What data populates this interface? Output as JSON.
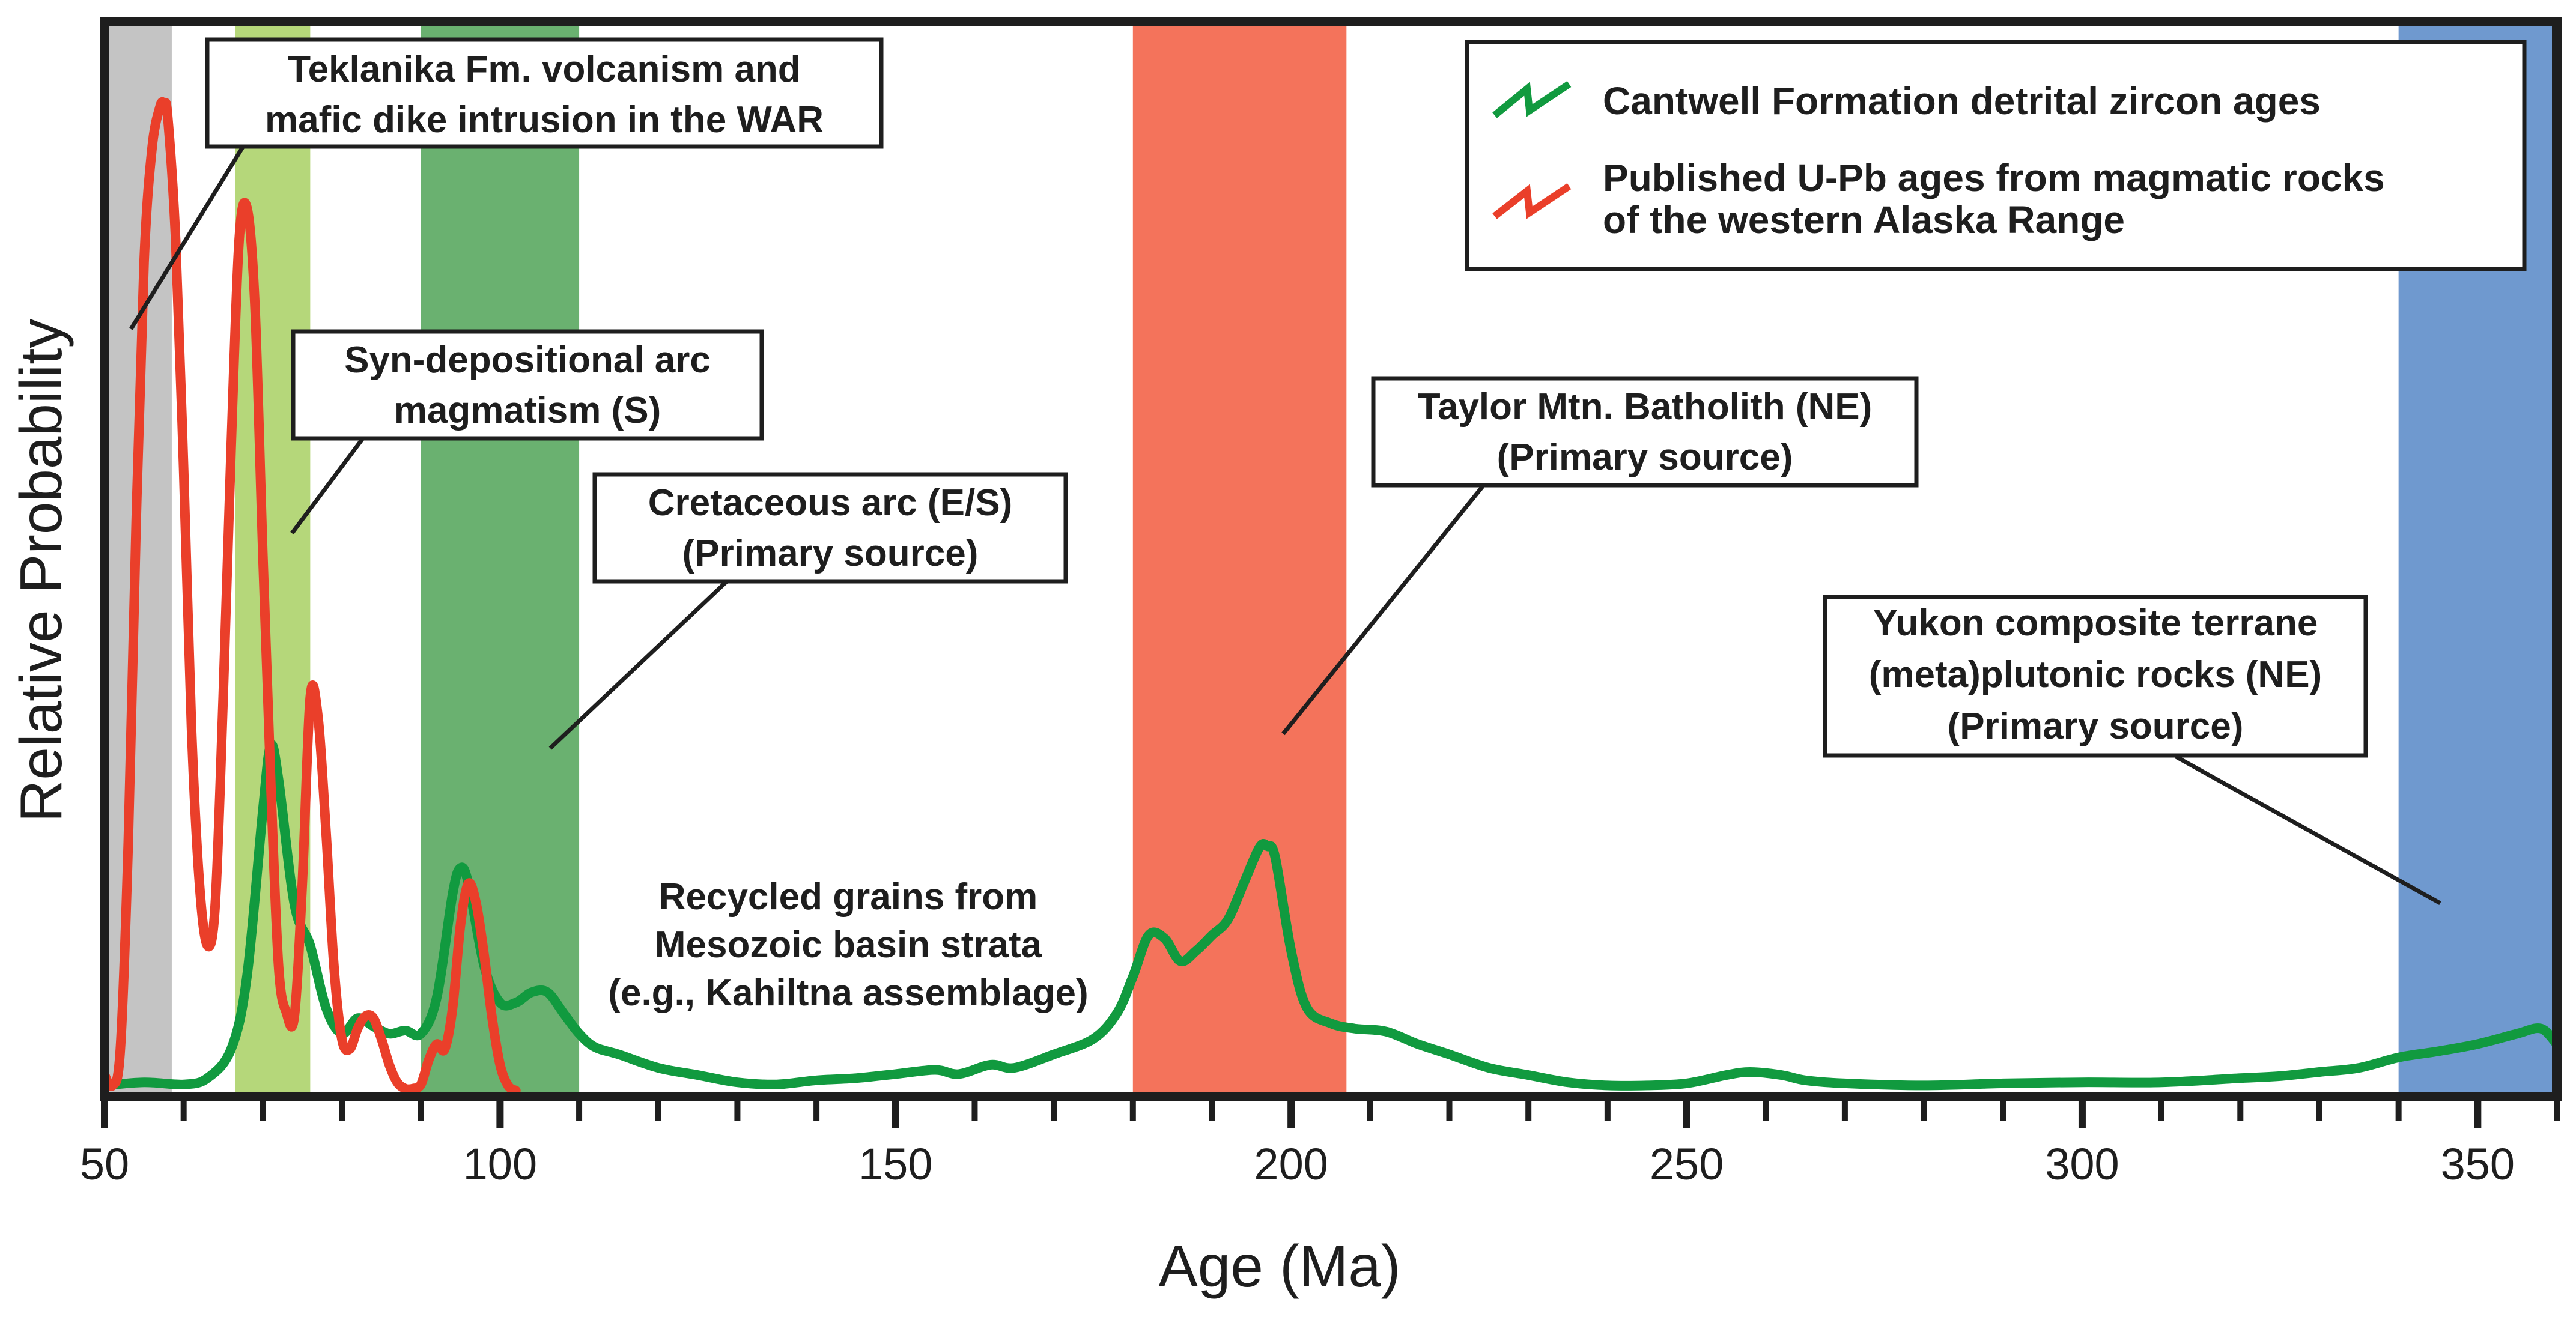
{
  "colors": {
    "green_curve": "#119a3f",
    "red_curve": "#ea3f2a",
    "band_gray": "#c4c4c4",
    "band_light_green": "#b5d77a",
    "band_dark_green": "#6ab170",
    "band_salmon": "#f4735b",
    "band_blue": "#6f99cf",
    "axis": "#1e1e1e"
  },
  "chart_data": {
    "type": "line",
    "title": "",
    "xlabel": "Age (Ma)",
    "ylabel": "Relative Probability",
    "xlim": [
      50,
      360
    ],
    "ylim": [
      0,
      1
    ],
    "xticks": [
      50,
      100,
      150,
      200,
      250,
      300,
      350
    ],
    "minor_tick_step": 10,
    "grid": false,
    "legend_position": "top-right",
    "legend": [
      {
        "label": "Cantwell Formation detrital zircon ages",
        "color": "#119a3f"
      },
      {
        "label": "Published U-Pb ages from magmatic rocks of the western Alaska Range",
        "color": "#ea3f2a"
      }
    ],
    "bands": [
      {
        "name": "Teklanika volcanism",
        "from": 50,
        "to": 58.5,
        "color": "#c4c4c4"
      },
      {
        "name": "Syn-depositional arc",
        "from": 66.5,
        "to": 76,
        "color": "#b5d77a"
      },
      {
        "name": "Cretaceous arc",
        "from": 90,
        "to": 110,
        "color": "#6ab170"
      },
      {
        "name": "Taylor Mtn. Batholith",
        "from": 180,
        "to": 207,
        "color": "#f4735b"
      },
      {
        "name": "Yukon composite terrane",
        "from": 340,
        "to": 360,
        "color": "#6f99cf"
      }
    ],
    "series": [
      {
        "name": "Cantwell Formation detrital zircon ages",
        "color": "#119a3f",
        "x": [
          50,
          55,
          60,
          63,
          66,
          68,
          70,
          71,
          72,
          74,
          76,
          78,
          80,
          82,
          84,
          86,
          88,
          90,
          92,
          94,
          95,
          96,
          98,
          100,
          102,
          104,
          106,
          108,
          110,
          112,
          115,
          120,
          125,
          130,
          135,
          140,
          145,
          150,
          155,
          158,
          162,
          165,
          170,
          175,
          178,
          180,
          182,
          184,
          186,
          188,
          190,
          192,
          194,
          196,
          197,
          198,
          200,
          202,
          205,
          208,
          212,
          216,
          220,
          225,
          230,
          235,
          240,
          245,
          250,
          255,
          258,
          262,
          265,
          270,
          280,
          290,
          300,
          310,
          320,
          325,
          330,
          335,
          340,
          345,
          350,
          355,
          358,
          360
        ],
        "y": [
          0.005,
          0.008,
          0.006,
          0.012,
          0.04,
          0.11,
          0.27,
          0.333,
          0.3,
          0.18,
          0.14,
          0.08,
          0.055,
          0.07,
          0.062,
          0.055,
          0.058,
          0.055,
          0.09,
          0.19,
          0.215,
          0.2,
          0.12,
          0.085,
          0.085,
          0.095,
          0.095,
          0.075,
          0.055,
          0.042,
          0.035,
          0.022,
          0.015,
          0.008,
          0.006,
          0.01,
          0.012,
          0.016,
          0.02,
          0.016,
          0.025,
          0.022,
          0.035,
          0.05,
          0.075,
          0.11,
          0.15,
          0.147,
          0.125,
          0.135,
          0.15,
          0.165,
          0.2,
          0.235,
          0.236,
          0.225,
          0.135,
          0.08,
          0.065,
          0.06,
          0.057,
          0.045,
          0.035,
          0.022,
          0.015,
          0.008,
          0.005,
          0.005,
          0.007,
          0.015,
          0.018,
          0.015,
          0.01,
          0.007,
          0.005,
          0.007,
          0.008,
          0.008,
          0.012,
          0.014,
          0.018,
          0.022,
          0.032,
          0.038,
          0.045,
          0.055,
          0.06,
          0.045
        ]
      },
      {
        "name": "Published U-Pb ages from magmatic rocks of the western Alaska Range",
        "color": "#ea3f2a",
        "x": [
          50,
          51,
          52,
          53,
          54,
          55,
          56,
          57,
          57.5,
          58,
          59,
          60,
          61,
          62,
          63,
          64,
          65,
          66,
          67,
          68,
          69,
          70,
          71,
          72,
          73,
          74,
          75,
          76,
          77,
          78,
          79,
          80,
          81,
          82,
          83,
          84,
          85,
          86,
          87,
          88,
          89,
          90,
          91,
          92,
          93,
          94,
          95,
          96,
          97,
          98,
          99,
          100,
          101,
          102
        ],
        "y": [
          0.015,
          0.005,
          0.04,
          0.24,
          0.55,
          0.8,
          0.91,
          0.95,
          0.953,
          0.94,
          0.82,
          0.6,
          0.35,
          0.2,
          0.14,
          0.18,
          0.38,
          0.62,
          0.82,
          0.853,
          0.76,
          0.52,
          0.3,
          0.12,
          0.075,
          0.072,
          0.2,
          0.38,
          0.36,
          0.25,
          0.12,
          0.05,
          0.04,
          0.06,
          0.072,
          0.07,
          0.05,
          0.025,
          0.008,
          0.002,
          0.002,
          0.006,
          0.03,
          0.045,
          0.04,
          0.08,
          0.16,
          0.2,
          0.18,
          0.13,
          0.07,
          0.025,
          0.005,
          0.0
        ]
      }
    ],
    "annotations": [
      {
        "lines": [
          "Teklanika Fm. volcanism and",
          "mafic dike intrusion in the WAR"
        ],
        "boxed": true
      },
      {
        "lines": [
          "Syn-depositional arc",
          "magmatism (S)"
        ],
        "boxed": true
      },
      {
        "lines": [
          "Cretaceous arc (E/S)",
          "(Primary source)"
        ],
        "boxed": true
      },
      {
        "lines": [
          "Taylor Mtn. Batholith (NE)",
          "(Primary source)"
        ],
        "boxed": true
      },
      {
        "lines": [
          "Yukon composite terrane",
          "(meta)plutonic rocks (NE)",
          "(Primary source)"
        ],
        "boxed": true
      },
      {
        "lines": [
          "Recycled grains from",
          "Mesozoic basin strata",
          "(e.g., Kahiltna assemblage)"
        ],
        "boxed": false
      }
    ]
  }
}
